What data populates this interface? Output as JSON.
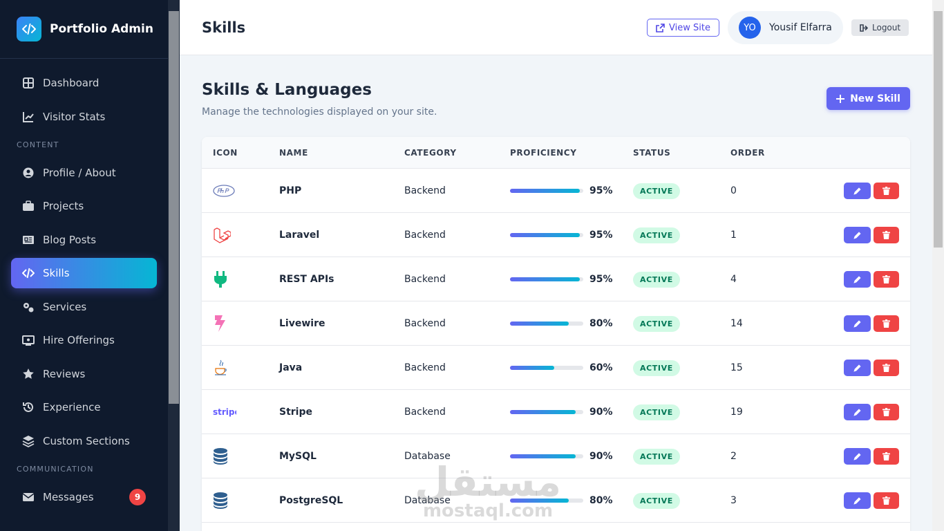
{
  "sidebar": {
    "brand": "Portfolio Admin",
    "top_items": [
      "Dashboard",
      "Visitor Stats"
    ],
    "sections": [
      {
        "title": "CONTENT",
        "items": [
          "Profile / About",
          "Projects",
          "Blog Posts",
          "Skills",
          "Services",
          "Hire Offerings",
          "Reviews",
          "Experience",
          "Custom Sections"
        ]
      },
      {
        "title": "COMMUNICATION",
        "items": [
          "Messages"
        ],
        "badge": 9
      }
    ],
    "active": "Skills"
  },
  "header": {
    "title": "Skills",
    "view_site": "View Site",
    "user_initials": "YO",
    "user_name": "Yousif Elfarra",
    "logout": "Logout"
  },
  "page": {
    "heading": "Skills & Languages",
    "subtitle": "Manage the technologies displayed on your site.",
    "new_button": "New Skill"
  },
  "table": {
    "columns": [
      "ICON",
      "NAME",
      "CATEGORY",
      "PROFICIENCY",
      "STATUS",
      "ORDER"
    ],
    "rows": [
      {
        "name": "PHP",
        "category": "Backend",
        "proficiency": 95,
        "proficiency_label": "95%",
        "status": "ACTIVE",
        "order": 0
      },
      {
        "name": "Laravel",
        "category": "Backend",
        "proficiency": 95,
        "proficiency_label": "95%",
        "status": "ACTIVE",
        "order": 1
      },
      {
        "name": "REST APIs",
        "category": "Backend",
        "proficiency": 95,
        "proficiency_label": "95%",
        "status": "ACTIVE",
        "order": 4
      },
      {
        "name": "Livewire",
        "category": "Backend",
        "proficiency": 80,
        "proficiency_label": "80%",
        "status": "ACTIVE",
        "order": 14
      },
      {
        "name": "Java",
        "category": "Backend",
        "proficiency": 60,
        "proficiency_label": "60%",
        "status": "ACTIVE",
        "order": 15
      },
      {
        "name": "Stripe",
        "category": "Backend",
        "proficiency": 90,
        "proficiency_label": "90%",
        "status": "ACTIVE",
        "order": 19
      },
      {
        "name": "MySQL",
        "category": "Database",
        "proficiency": 90,
        "proficiency_label": "90%",
        "status": "ACTIVE",
        "order": 2
      },
      {
        "name": "PostgreSQL",
        "category": "Database",
        "proficiency": 80,
        "proficiency_label": "80%",
        "status": "ACTIVE",
        "order": 3
      }
    ]
  },
  "watermark": {
    "arabic": "مستقل",
    "latin": "mostaql.com"
  }
}
